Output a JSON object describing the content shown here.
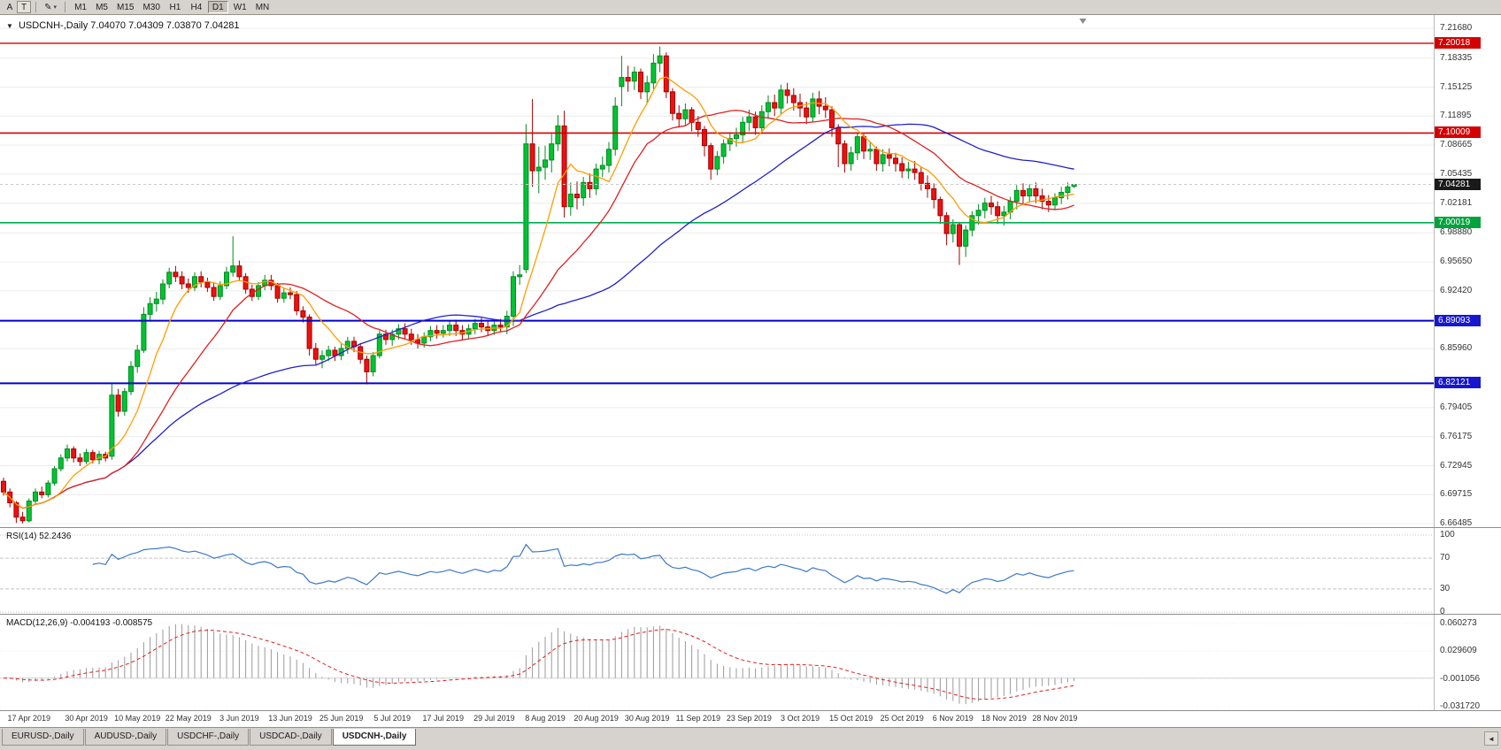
{
  "toolbar": {
    "buttons": [
      {
        "label": "A"
      },
      {
        "label": "T"
      }
    ],
    "draw_tool_icon": "✎",
    "icons": {
      "chevron_down": "▾",
      "symbol_dropdown": "▼"
    },
    "timeframes": [
      "M1",
      "M5",
      "M15",
      "M30",
      "H1",
      "H4",
      "D1",
      "W1",
      "MN"
    ],
    "active_timeframe": "D1"
  },
  "chart": {
    "title": "USDCNH-,Daily",
    "ohlc_readout": "7.04070 7.04309 7.03870 7.04281"
  },
  "price_axis": {
    "ticks": [
      {
        "value": 7.2168,
        "label": "7.21680"
      },
      {
        "value": 7.18335,
        "label": "7.18335"
      },
      {
        "value": 7.15125,
        "label": "7.15125"
      },
      {
        "value": 7.11895,
        "label": "7.11895"
      },
      {
        "value": 7.08665,
        "label": "7.08665"
      },
      {
        "value": 7.05435,
        "label": "7.05435"
      },
      {
        "value": 7.02181,
        "label": "7.02181"
      },
      {
        "value": 6.9888,
        "label": "6.98880"
      },
      {
        "value": 6.9565,
        "label": "6.95650"
      },
      {
        "value": 6.9242,
        "label": "6.92420"
      },
      {
        "value": 6.8596,
        "label": "6.85960"
      },
      {
        "value": 6.79405,
        "label": "6.79405"
      },
      {
        "value": 6.76175,
        "label": "6.76175"
      },
      {
        "value": 6.72945,
        "label": "6.72945"
      },
      {
        "value": 6.69715,
        "label": "6.69715"
      },
      {
        "value": 6.66485,
        "label": "6.66485"
      }
    ],
    "badges": [
      {
        "value": 7.20018,
        "label": "7.20018",
        "color": "#d40000"
      },
      {
        "value": 7.10009,
        "label": "7.10009",
        "color": "#d40000"
      },
      {
        "value": 7.04281,
        "label": "7.04281",
        "color": "#1a1a1a"
      },
      {
        "value": 7.00019,
        "label": "7.00019",
        "color": "#00a33c"
      },
      {
        "value": 6.89093,
        "label": "6.89093",
        "color": "#1717cf"
      },
      {
        "value": 6.82121,
        "label": "6.82121",
        "color": "#1717cf"
      }
    ]
  },
  "rsi": {
    "label": "RSI(14)",
    "period": 14,
    "current_display": "52.2436",
    "color": "#3b78c8",
    "levels": [
      {
        "value": 100,
        "label": "100",
        "dashed": false
      },
      {
        "value": 70,
        "label": "70",
        "dashed": true
      },
      {
        "value": 30,
        "label": "30",
        "dashed": true
      },
      {
        "value": 0,
        "label": "0",
        "dashed": false
      }
    ]
  },
  "macd": {
    "label": "MACD(12,26,9)",
    "fast": 12,
    "slow": 26,
    "signal": 9,
    "current_display": "-0.004193 -0.008575",
    "scale_max": 0.060273,
    "scale_min": -0.03172,
    "hist_color": "#9a9a9a",
    "signal_color": "#e02020",
    "axis_labels": [
      {
        "value": 0.060273,
        "label": "0.060273"
      },
      {
        "value": 0.029609,
        "label": "0.029609"
      },
      {
        "value": -0.001056,
        "label": "-0.001056"
      },
      {
        "value": -0.03172,
        "label": "-0.031720"
      }
    ]
  },
  "time_axis": {
    "labels": [
      {
        "text": "17 Apr 2019",
        "bar": 4
      },
      {
        "text": "30 Apr 2019",
        "bar": 13
      },
      {
        "text": "10 May 2019",
        "bar": 21
      },
      {
        "text": "22 May 2019",
        "bar": 29
      },
      {
        "text": "3 Jun 2019",
        "bar": 37
      },
      {
        "text": "13 Jun 2019",
        "bar": 45
      },
      {
        "text": "25 Jun 2019",
        "bar": 53
      },
      {
        "text": "5 Jul 2019",
        "bar": 61
      },
      {
        "text": "17 Jul 2019",
        "bar": 69
      },
      {
        "text": "29 Jul 2019",
        "bar": 77
      },
      {
        "text": "8 Aug 2019",
        "bar": 85
      },
      {
        "text": "20 Aug 2019",
        "bar": 93
      },
      {
        "text": "30 Aug 2019",
        "bar": 101
      },
      {
        "text": "11 Sep 2019",
        "bar": 109
      },
      {
        "text": "23 Sep 2019",
        "bar": 117
      },
      {
        "text": "3 Oct 2019",
        "bar": 125
      },
      {
        "text": "15 Oct 2019",
        "bar": 133
      },
      {
        "text": "25 Oct 2019",
        "bar": 141
      },
      {
        "text": "6 Nov 2019",
        "bar": 149
      },
      {
        "text": "18 Nov 2019",
        "bar": 157
      },
      {
        "text": "28 Nov 2019",
        "bar": 165
      }
    ]
  },
  "tabs": {
    "items": [
      "EURUSD-,Daily",
      "AUDUSD-,Daily",
      "USDCHF-,Daily",
      "USDCAD-,Daily",
      "USDCNH-,Daily"
    ],
    "active_index": 4,
    "scroll_left_icon": "◄"
  },
  "chart_data": {
    "type": "candlestick",
    "symbol": "USDCNH-,Daily",
    "ohlc_current": {
      "open": 7.0407,
      "high": 7.04309,
      "low": 7.0387,
      "close": 7.04281
    },
    "price_scale": {
      "min": 6.66485,
      "max": 7.2168
    },
    "colors": {
      "up": "#00c432",
      "up_border": "#008a22",
      "down": "#ef1010",
      "down_border": "#a30000"
    },
    "hlines": [
      {
        "value": 7.20018,
        "color": "#d40000",
        "width": 1.4,
        "dashed": false
      },
      {
        "value": 7.10009,
        "color": "#d40000",
        "width": 1.6,
        "dashed": false
      },
      {
        "value": 7.04281,
        "color": "#c9c9c9",
        "width": 1,
        "dashed": true
      },
      {
        "value": 7.00019,
        "color": "#00b050",
        "width": 1.6,
        "dashed": false
      },
      {
        "value": 6.89093,
        "color": "#0000cd",
        "width": 2,
        "dashed": false
      },
      {
        "value": 6.82121,
        "color": "#0000cd",
        "width": 2,
        "dashed": false
      }
    ],
    "moving_averages": [
      {
        "period": 8,
        "color": "#ff9d00"
      },
      {
        "period": 20,
        "color": "#e02020"
      },
      {
        "period": 50,
        "color": "#2020c8"
      }
    ],
    "candles": [
      [
        6.712,
        6.716,
        6.696,
        6.7
      ],
      [
        6.7,
        6.704,
        6.683,
        6.688
      ],
      [
        6.688,
        6.69,
        6.6655,
        6.672
      ],
      [
        6.672,
        6.678,
        6.665,
        6.668
      ],
      [
        6.668,
        6.693,
        6.666,
        6.69
      ],
      [
        6.69,
        6.704,
        6.686,
        6.7
      ],
      [
        6.7,
        6.706,
        6.693,
        6.697
      ],
      [
        6.697,
        6.713,
        6.694,
        6.71
      ],
      [
        6.71,
        6.729,
        6.707,
        6.726
      ],
      [
        6.726,
        6.742,
        6.723,
        6.738
      ],
      [
        6.738,
        6.753,
        6.734,
        6.748
      ],
      [
        6.748,
        6.751,
        6.733,
        6.738
      ],
      [
        6.738,
        6.743,
        6.729,
        6.734
      ],
      [
        6.734,
        6.748,
        6.731,
        6.744
      ],
      [
        6.744,
        6.747,
        6.732,
        6.736
      ],
      [
        6.736,
        6.746,
        6.731,
        6.742
      ],
      [
        6.742,
        6.745,
        6.734,
        6.738
      ],
      [
        6.74,
        6.822,
        6.736,
        6.808
      ],
      [
        6.808,
        6.815,
        6.784,
        6.79
      ],
      [
        6.79,
        6.816,
        6.785,
        6.812
      ],
      [
        6.812,
        6.846,
        6.808,
        6.84
      ],
      [
        6.84,
        6.864,
        6.833,
        6.858
      ],
      [
        6.858,
        6.906,
        6.855,
        6.898
      ],
      [
        6.898,
        6.917,
        6.89,
        6.91
      ],
      [
        6.91,
        6.923,
        6.901,
        6.915
      ],
      [
        6.915,
        6.937,
        6.909,
        6.932
      ],
      [
        6.932,
        6.95,
        6.927,
        6.945
      ],
      [
        6.945,
        6.952,
        6.934,
        6.94
      ],
      [
        6.94,
        6.946,
        6.926,
        6.932
      ],
      [
        6.932,
        6.938,
        6.922,
        6.928
      ],
      [
        6.928,
        6.945,
        6.924,
        6.94
      ],
      [
        6.94,
        6.946,
        6.928,
        6.934
      ],
      [
        6.934,
        6.939,
        6.923,
        6.928
      ],
      [
        6.928,
        6.933,
        6.913,
        6.918
      ],
      [
        6.918,
        6.935,
        6.914,
        6.93
      ],
      [
        6.93,
        6.951,
        6.926,
        6.945
      ],
      [
        6.945,
        6.985,
        6.94,
        6.952
      ],
      [
        6.952,
        6.958,
        6.935,
        6.94
      ],
      [
        6.94,
        6.944,
        6.921,
        6.926
      ],
      [
        6.926,
        6.931,
        6.913,
        6.918
      ],
      [
        6.918,
        6.934,
        6.914,
        6.93
      ],
      [
        6.93,
        6.942,
        6.925,
        6.936
      ],
      [
        6.936,
        6.942,
        6.925,
        6.93
      ],
      [
        6.93,
        6.933,
        6.911,
        6.916
      ],
      [
        6.916,
        6.927,
        6.911,
        6.922
      ],
      [
        6.922,
        6.928,
        6.915,
        6.92
      ],
      [
        6.92,
        6.924,
        6.897,
        6.902
      ],
      [
        6.902,
        6.907,
        6.889,
        6.895
      ],
      [
        6.895,
        6.898,
        6.852,
        6.86
      ],
      [
        6.86,
        6.866,
        6.842,
        6.848
      ],
      [
        6.848,
        6.858,
        6.838,
        6.852
      ],
      [
        6.852,
        6.863,
        6.846,
        6.858
      ],
      [
        6.858,
        6.862,
        6.846,
        6.852
      ],
      [
        6.852,
        6.865,
        6.847,
        6.86
      ],
      [
        6.86,
        6.873,
        6.854,
        6.868
      ],
      [
        6.868,
        6.873,
        6.856,
        6.862
      ],
      [
        6.862,
        6.866,
        6.843,
        6.848
      ],
      [
        6.848,
        6.852,
        6.82,
        6.834
      ],
      [
        6.834,
        6.856,
        6.829,
        6.852
      ],
      [
        6.852,
        6.88,
        6.849,
        6.876
      ],
      [
        6.876,
        6.881,
        6.864,
        6.87
      ],
      [
        6.87,
        6.881,
        6.863,
        6.876
      ],
      [
        6.876,
        6.887,
        6.87,
        6.882
      ],
      [
        6.882,
        6.888,
        6.87,
        6.876
      ],
      [
        6.876,
        6.882,
        6.864,
        6.87
      ],
      [
        6.87,
        6.876,
        6.86,
        6.866
      ],
      [
        6.866,
        6.878,
        6.861,
        6.873
      ],
      [
        6.873,
        6.885,
        6.868,
        6.88
      ],
      [
        6.88,
        6.886,
        6.871,
        6.877
      ],
      [
        6.877,
        6.886,
        6.872,
        6.88
      ],
      [
        6.88,
        6.891,
        6.874,
        6.886
      ],
      [
        6.886,
        6.892,
        6.874,
        6.88
      ],
      [
        6.88,
        6.886,
        6.87,
        6.876
      ],
      [
        6.876,
        6.887,
        6.871,
        6.882
      ],
      [
        6.882,
        6.893,
        6.876,
        6.888
      ],
      [
        6.888,
        6.894,
        6.878,
        6.884
      ],
      [
        6.884,
        6.89,
        6.874,
        6.88
      ],
      [
        6.88,
        6.891,
        6.875,
        6.886
      ],
      [
        6.886,
        6.893,
        6.878,
        6.884
      ],
      [
        6.884,
        6.902,
        6.876,
        6.896
      ],
      [
        6.896,
        6.946,
        6.885,
        6.94
      ],
      [
        6.94,
        6.953,
        6.931,
        6.942
      ],
      [
        6.948,
        7.11,
        6.944,
        7.088
      ],
      [
        7.088,
        7.138,
        7.04,
        7.058
      ],
      [
        7.058,
        7.085,
        7.033,
        7.062
      ],
      [
        7.062,
        7.086,
        7.048,
        7.07
      ],
      [
        7.07,
        7.099,
        7.056,
        7.088
      ],
      [
        7.088,
        7.12,
        7.08,
        7.108
      ],
      [
        7.108,
        7.125,
        7.006,
        7.018
      ],
      [
        7.018,
        7.045,
        7.008,
        7.032
      ],
      [
        7.032,
        7.046,
        7.015,
        7.028
      ],
      [
        7.028,
        7.051,
        7.019,
        7.045
      ],
      [
        7.045,
        7.055,
        7.028,
        7.038
      ],
      [
        7.038,
        7.066,
        7.031,
        7.06
      ],
      [
        7.06,
        7.074,
        7.051,
        7.064
      ],
      [
        7.064,
        7.09,
        7.056,
        7.082
      ],
      [
        7.082,
        7.14,
        7.075,
        7.13
      ],
      [
        7.152,
        7.186,
        7.13,
        7.162
      ],
      [
        7.162,
        7.175,
        7.146,
        7.158
      ],
      [
        7.158,
        7.174,
        7.148,
        7.168
      ],
      [
        7.168,
        7.172,
        7.138,
        7.146
      ],
      [
        7.146,
        7.164,
        7.133,
        7.156
      ],
      [
        7.156,
        7.188,
        7.149,
        7.178
      ],
      [
        7.178,
        7.1965,
        7.168,
        7.186
      ],
      [
        7.186,
        7.19,
        7.139,
        7.146
      ],
      [
        7.146,
        7.15,
        7.114,
        7.122
      ],
      [
        7.122,
        7.131,
        7.106,
        7.116
      ],
      [
        7.116,
        7.133,
        7.108,
        7.126
      ],
      [
        7.126,
        7.129,
        7.102,
        7.112
      ],
      [
        7.112,
        7.119,
        7.096,
        7.104
      ],
      [
        7.104,
        7.108,
        7.074,
        7.086
      ],
      [
        7.086,
        7.089,
        7.048,
        7.06
      ],
      [
        7.06,
        7.08,
        7.053,
        7.074
      ],
      [
        7.074,
        7.093,
        7.066,
        7.088
      ],
      [
        7.088,
        7.101,
        7.08,
        7.094
      ],
      [
        7.094,
        7.106,
        7.085,
        7.098
      ],
      [
        7.098,
        7.118,
        7.09,
        7.112
      ],
      [
        7.112,
        7.126,
        7.102,
        7.118
      ],
      [
        7.118,
        7.124,
        7.098,
        7.106
      ],
      [
        7.106,
        7.131,
        7.099,
        7.124
      ],
      [
        7.124,
        7.142,
        7.116,
        7.134
      ],
      [
        7.134,
        7.143,
        7.119,
        7.128
      ],
      [
        7.128,
        7.154,
        7.121,
        7.148
      ],
      [
        7.148,
        7.156,
        7.133,
        7.142
      ],
      [
        7.142,
        7.15,
        7.125,
        7.134
      ],
      [
        7.134,
        7.144,
        7.118,
        7.128
      ],
      [
        7.128,
        7.135,
        7.11,
        7.118
      ],
      [
        7.118,
        7.145,
        7.112,
        7.138
      ],
      [
        7.138,
        7.147,
        7.121,
        7.13
      ],
      [
        7.13,
        7.14,
        7.117,
        7.126
      ],
      [
        7.126,
        7.13,
        7.096,
        7.106
      ],
      [
        7.106,
        7.11,
        7.062,
        7.088
      ],
      [
        7.088,
        7.092,
        7.056,
        7.066
      ],
      [
        7.066,
        7.085,
        7.058,
        7.078
      ],
      [
        7.078,
        7.101,
        7.07,
        7.096
      ],
      [
        7.096,
        7.099,
        7.071,
        7.08
      ],
      [
        7.08,
        7.09,
        7.07,
        7.082
      ],
      [
        7.082,
        7.085,
        7.058,
        7.066
      ],
      [
        7.066,
        7.082,
        7.057,
        7.076
      ],
      [
        7.076,
        7.083,
        7.063,
        7.072
      ],
      [
        7.072,
        7.078,
        7.057,
        7.066
      ],
      [
        7.066,
        7.073,
        7.05,
        7.058
      ],
      [
        7.058,
        7.068,
        7.049,
        7.06
      ],
      [
        7.06,
        7.069,
        7.048,
        7.056
      ],
      [
        7.056,
        7.062,
        7.036,
        7.044
      ],
      [
        7.044,
        7.053,
        7.028,
        7.038
      ],
      [
        7.038,
        7.044,
        7.016,
        7.026
      ],
      [
        7.026,
        7.029,
        6.999,
        7.008
      ],
      [
        7.008,
        7.012,
        6.975,
        6.988
      ],
      [
        6.988,
        7.004,
        6.978,
        6.998
      ],
      [
        6.998,
        7.001,
        6.953,
        6.974
      ],
      [
        6.974,
        6.997,
        6.962,
        6.992
      ],
      [
        6.992,
        7.013,
        6.985,
        7.008
      ],
      [
        7.008,
        7.021,
        6.998,
        7.014
      ],
      [
        7.014,
        7.028,
        7.005,
        7.022
      ],
      [
        7.022,
        7.03,
        7.009,
        7.018
      ],
      [
        7.018,
        7.024,
        6.999,
        7.008
      ],
      [
        7.008,
        7.019,
        6.997,
        7.012
      ],
      [
        7.012,
        7.029,
        7.004,
        7.024
      ],
      [
        7.024,
        7.042,
        7.015,
        7.036
      ],
      [
        7.036,
        7.044,
        7.021,
        7.03
      ],
      [
        7.03,
        7.043,
        7.023,
        7.038
      ],
      [
        7.038,
        7.045,
        7.022,
        7.03
      ],
      [
        7.03,
        7.038,
        7.015,
        7.024
      ],
      [
        7.024,
        7.031,
        7.012,
        7.02
      ],
      [
        7.02,
        7.033,
        7.014,
        7.028
      ],
      [
        7.028,
        7.04,
        7.021,
        7.034
      ],
      [
        7.034,
        7.045,
        7.026,
        7.04
      ],
      [
        7.0407,
        7.04309,
        7.0387,
        7.04281
      ]
    ]
  }
}
